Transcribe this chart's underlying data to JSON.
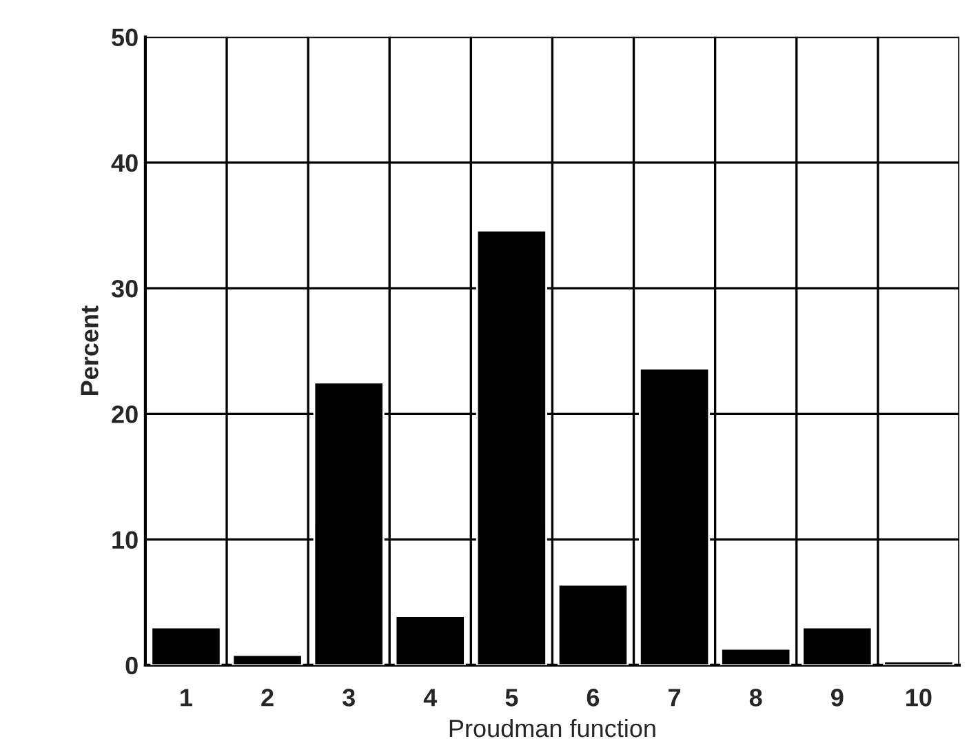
{
  "chart_data": {
    "type": "bar",
    "xlabel": "Proudman function",
    "ylabel": "Percent",
    "categories": [
      "1",
      "2",
      "3",
      "4",
      "5",
      "6",
      "7",
      "8",
      "9",
      "10"
    ],
    "values": [
      3.0,
      0.8,
      22.5,
      3.9,
      34.6,
      6.4,
      23.6,
      1.3,
      3.0,
      0.3
    ],
    "color": "#000000",
    "ylim": [
      0,
      50
    ],
    "yticks": [
      0,
      10,
      20,
      30,
      40,
      50
    ],
    "grid": true
  }
}
